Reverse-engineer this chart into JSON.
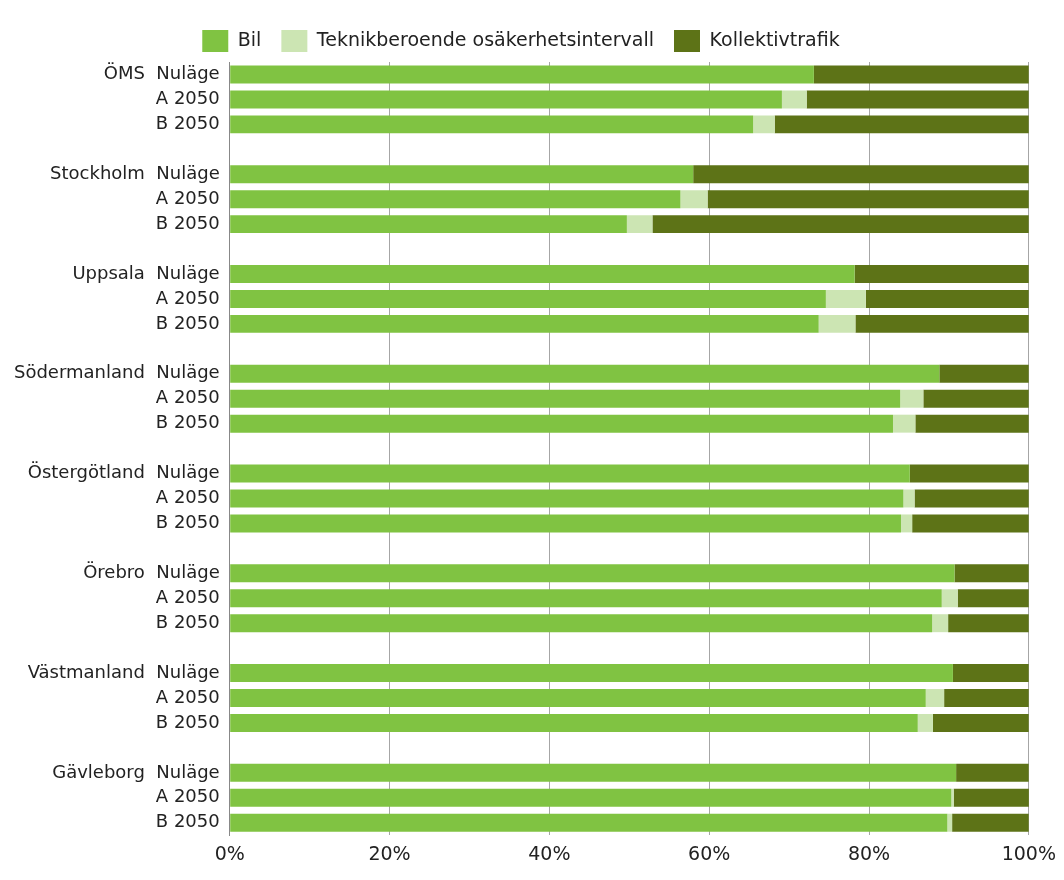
{
  "chart_data": {
    "type": "bar",
    "orientation": "horizontal",
    "stacked": true,
    "legend": "top",
    "grid": "x",
    "categories": [
      "ÖMS  Nuläge",
      "A 2050",
      "B 2050",
      null,
      "Stockholm  Nuläge",
      "A 2050",
      "B 2050",
      null,
      "Uppsala  Nuläge",
      "A 2050",
      "B 2050",
      null,
      "Södermanland  Nuläge",
      "A 2050",
      "B 2050",
      null,
      "Östergötland  Nuläge",
      "A 2050",
      "B 2050",
      null,
      "Örebro  Nuläge",
      "A 2050",
      "B 2050",
      null,
      "Västmanland  Nuläge",
      "A 2050",
      "B 2050",
      null,
      "Gävleborg  Nuläge",
      "A 2050",
      "B 2050"
    ],
    "series": [
      {
        "name": "Bil",
        "color": "#80c342",
        "values": [
          73.1,
          69.1,
          65.5,
          null,
          58.0,
          56.4,
          49.7,
          null,
          78.2,
          74.6,
          73.7,
          null,
          88.8,
          83.9,
          83.0,
          null,
          85.1,
          84.3,
          84.0,
          null,
          90.7,
          89.1,
          87.9,
          null,
          90.5,
          87.1,
          86.1,
          null,
          90.9,
          90.3,
          89.8
        ]
      },
      {
        "name": "Teknikberoende osäkerhetsintervall",
        "color": "#cce5b3",
        "values": [
          0,
          3.1,
          2.7,
          null,
          0,
          3.4,
          3.2,
          null,
          0,
          5.0,
          4.6,
          null,
          0,
          2.9,
          2.8,
          null,
          0,
          1.4,
          1.4,
          null,
          0,
          2.0,
          2.0,
          null,
          0,
          2.3,
          1.9,
          null,
          0,
          0.3,
          0.6
        ]
      },
      {
        "name": "Kollektivtrafik",
        "color": "#5d7317",
        "values": [
          26.9,
          27.8,
          31.8,
          null,
          42.0,
          40.2,
          47.1,
          null,
          21.8,
          20.4,
          21.7,
          null,
          11.2,
          13.2,
          14.2,
          null,
          14.9,
          14.3,
          14.6,
          null,
          9.3,
          8.9,
          10.1,
          null,
          9.5,
          10.6,
          12.0,
          null,
          9.1,
          9.5,
          9.6
        ]
      }
    ],
    "xlim": [
      0,
      100
    ],
    "xticks": [
      {
        "value": 0,
        "label": "0%"
      },
      {
        "value": 20,
        "label": "20%"
      },
      {
        "value": 40,
        "label": "40%"
      },
      {
        "value": 60,
        "label": "60%"
      },
      {
        "value": 80,
        "label": "80%"
      },
      {
        "value": 100,
        "label": "100%"
      }
    ]
  }
}
